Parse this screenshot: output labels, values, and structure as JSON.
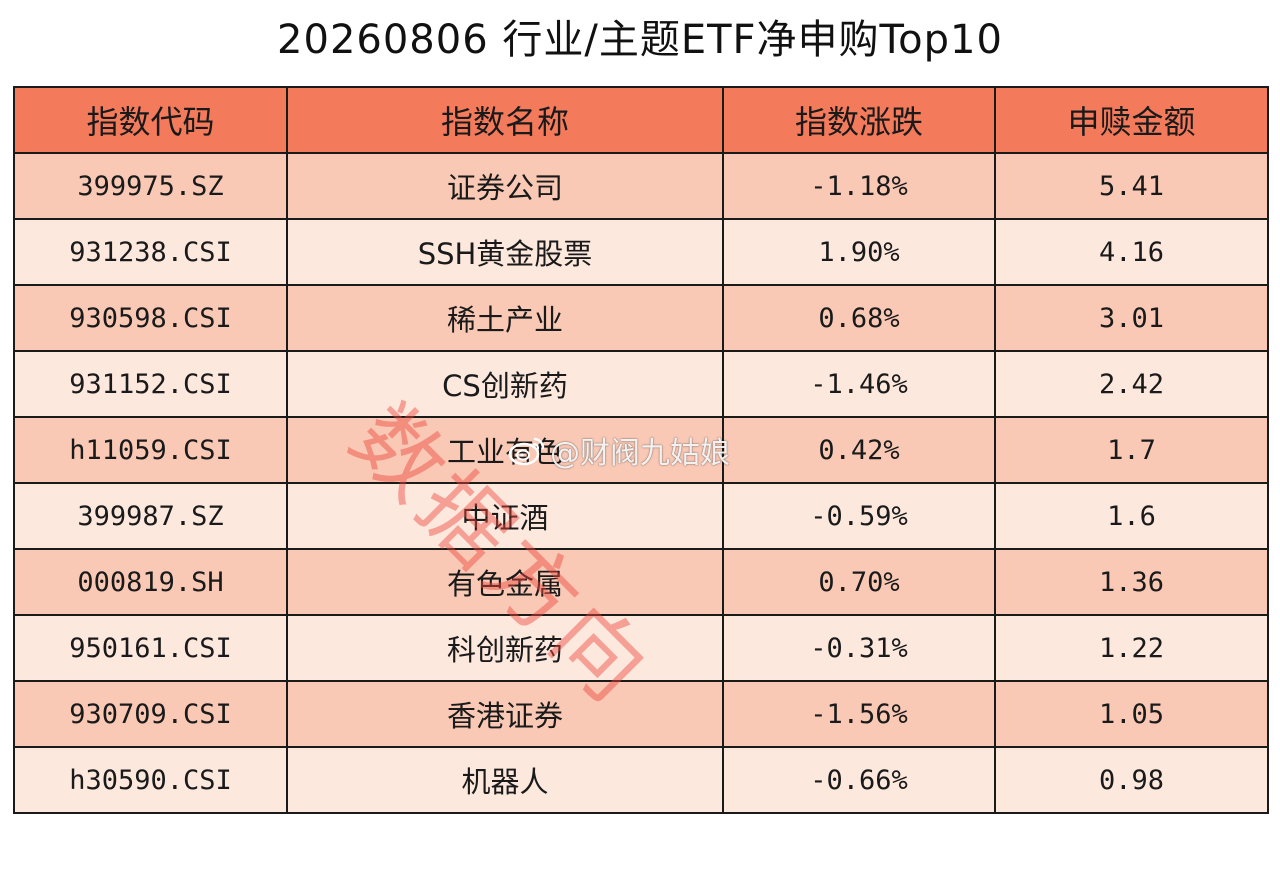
{
  "title": "20260806 行业/主题ETF净申购Top10",
  "table": {
    "headers": [
      "指数代码",
      "指数名称",
      "指数涨跌",
      "申赎金额"
    ],
    "rows": [
      {
        "code": "399975.SZ",
        "name": "证券公司",
        "change": "-1.18%",
        "amount": "5.41"
      },
      {
        "code": "931238.CSI",
        "name": "SSH黄金股票",
        "change": "1.90%",
        "amount": "4.16"
      },
      {
        "code": "930598.CSI",
        "name": "稀土产业",
        "change": "0.68%",
        "amount": "3.01"
      },
      {
        "code": "931152.CSI",
        "name": "CS创新药",
        "change": "-1.46%",
        "amount": "2.42"
      },
      {
        "code": "h11059.CSI",
        "name": "工业有色",
        "change": "0.42%",
        "amount": "1.7"
      },
      {
        "code": "399987.SZ",
        "name": "中证酒",
        "change": "-0.59%",
        "amount": "1.6"
      },
      {
        "code": "000819.SH",
        "name": "有色金属",
        "change": "0.70%",
        "amount": "1.36"
      },
      {
        "code": "950161.CSI",
        "name": "科创新药",
        "change": "-0.31%",
        "amount": "1.22"
      },
      {
        "code": "930709.CSI",
        "name": "香港证券",
        "change": "-1.56%",
        "amount": "1.05"
      },
      {
        "code": "h30590.CSI",
        "name": "机器人",
        "change": "-0.66%",
        "amount": "0.98"
      }
    ]
  },
  "watermark": {
    "text": "数据方向",
    "color": "#eb463c"
  },
  "weibo_mark": {
    "icon": "weibo-icon",
    "text": "@财阀九姑娘"
  },
  "colors": {
    "header_bg": "#f47a5c",
    "row_odd_bg": "#f9c9b6",
    "row_even_bg": "#fde8de",
    "border": "#1a1a1a"
  }
}
